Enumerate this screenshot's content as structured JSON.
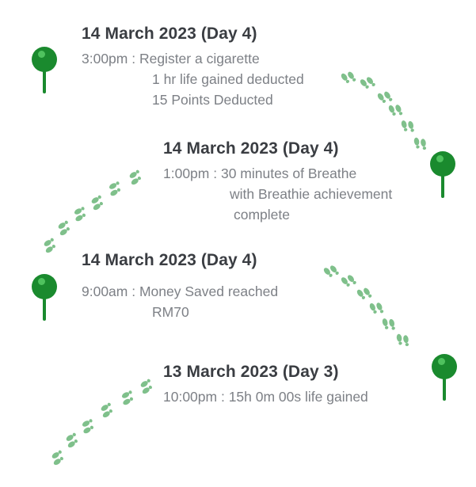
{
  "colors": {
    "pin": "#1a8a2e",
    "pin_highlight": "#4fc25e",
    "footprint": "#7fc08b",
    "date_text": "#3a3d42",
    "detail_text": "#7d8086"
  },
  "entries": [
    {
      "date": "14 March 2023 (Day 4)",
      "lines": [
        "3:00pm : Register a cigarette",
        "1 hr life gained deducted",
        "15 Points Deducted"
      ]
    },
    {
      "date": "14 March 2023 (Day 4)",
      "lines": [
        "1:00pm : 30 minutes of Breathe",
        "with Breathie achievement",
        "complete"
      ]
    },
    {
      "date": "14 March 2023 (Day 4)",
      "lines": [
        "9:00am : Money Saved reached",
        "RM70"
      ]
    },
    {
      "date": "13 March 2023 (Day 3)",
      "lines": [
        "10:00pm : 15h 0m 00s life gained"
      ]
    }
  ],
  "icons": {
    "pin": "map-pin-icon",
    "footsteps": "footsteps-icon"
  }
}
